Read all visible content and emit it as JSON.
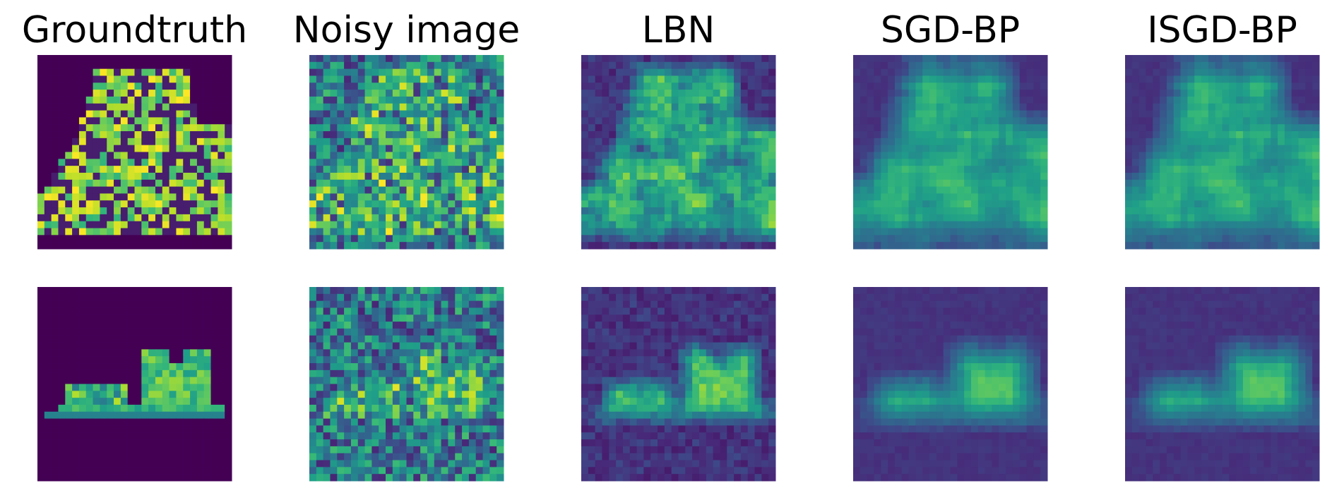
{
  "titles": [
    "Groundtruth",
    "Noisy image",
    "LBN",
    "SGD-BP",
    "ISGD-BP"
  ]
}
